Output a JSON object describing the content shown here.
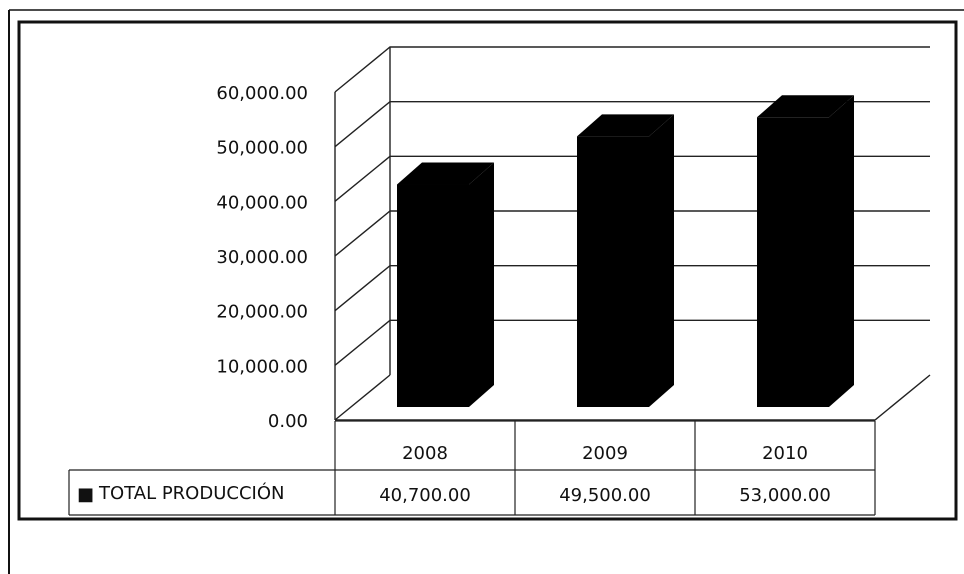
{
  "chart_data": {
    "type": "bar",
    "categories": [
      "2008",
      "2009",
      "2010"
    ],
    "series": [
      {
        "name": "TOTAL PRODUCCIÓN",
        "values": [
          40700,
          49500,
          53000
        ]
      }
    ],
    "ylim": [
      0,
      60000
    ],
    "yticks": [
      "0.00",
      "10,000.00",
      "20,000.00",
      "30,000.00",
      "40,000.00",
      "50,000.00",
      "60,000.00"
    ],
    "table_values": [
      "40,700.00",
      "49,500.00",
      "53,000.00"
    ],
    "legend_marker": "■",
    "grid": true,
    "legend": "data-table",
    "bar_color": "#000000"
  }
}
